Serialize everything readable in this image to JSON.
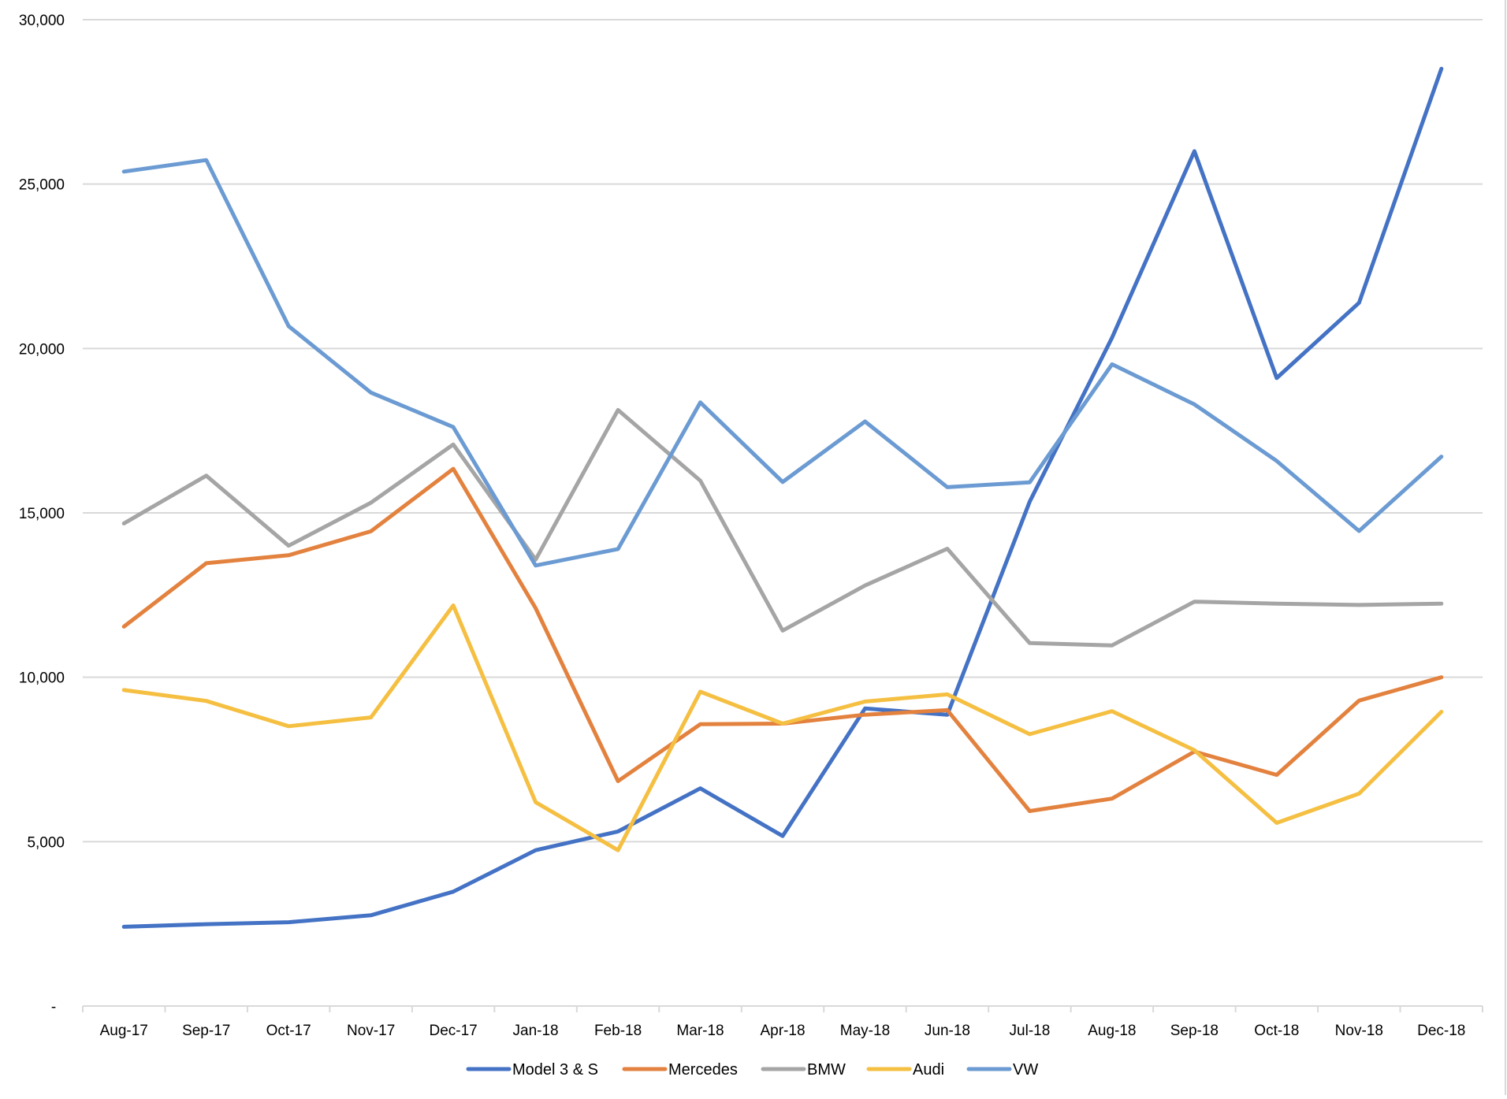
{
  "chart_data": {
    "type": "line",
    "title": "",
    "xlabel": "",
    "ylabel": "",
    "ylim": [
      0,
      30000
    ],
    "grid": "horizontal",
    "legend_position": "bottom",
    "y_ticks": [
      0,
      5000,
      10000,
      15000,
      20000,
      25000,
      30000
    ],
    "y_tick_labels": [
      "-",
      "5,000",
      "10,000",
      "15,000",
      "20,000",
      "25,000",
      "30,000"
    ],
    "categories": [
      "Aug-17",
      "Sep-17",
      "Oct-17",
      "Nov-17",
      "Dec-17",
      "Jan-18",
      "Feb-18",
      "Mar-18",
      "Apr-18",
      "May-18",
      "Jun-18",
      "Jul-18",
      "Aug-18",
      "Sep-18",
      "Oct-18",
      "Nov-18",
      "Dec-18"
    ],
    "series": [
      {
        "name": "Model 3 & S",
        "color": "#4472C4",
        "values": [
          2410,
          2490,
          2550,
          2760,
          3480,
          4740,
          5310,
          6620,
          5170,
          9050,
          8860,
          15340,
          20330,
          26000,
          19100,
          21390,
          28510
        ]
      },
      {
        "name": "Mercedes",
        "color": "#E3823F",
        "values": [
          11540,
          13470,
          13710,
          14440,
          16340,
          12100,
          6840,
          8570,
          8590,
          8860,
          9000,
          5930,
          6310,
          7740,
          7030,
          9290,
          10000
        ]
      },
      {
        "name": "BMW",
        "color": "#A5A5A5",
        "values": [
          14680,
          16130,
          14000,
          15310,
          17080,
          13580,
          18130,
          15980,
          11420,
          12790,
          13910,
          11040,
          10970,
          12300,
          12240,
          12200,
          12240
        ]
      },
      {
        "name": "Audi",
        "color": "#F5BF42",
        "values": [
          9610,
          9280,
          8510,
          8780,
          12185,
          6200,
          4740,
          9560,
          8590,
          9260,
          9480,
          8270,
          8970,
          7780,
          5570,
          6460,
          8950
        ]
      },
      {
        "name": "VW",
        "color": "#6B9BD2",
        "values": [
          25380,
          25730,
          20680,
          18660,
          17610,
          13400,
          13900,
          18360,
          15940,
          17780,
          15780,
          15930,
          19520,
          18300,
          16580,
          14450,
          16710
        ]
      }
    ]
  },
  "colors": {
    "gridline": "#d9d9d9",
    "axis": "#d9d9d9",
    "background": "#ffffff",
    "text": "#000000"
  }
}
